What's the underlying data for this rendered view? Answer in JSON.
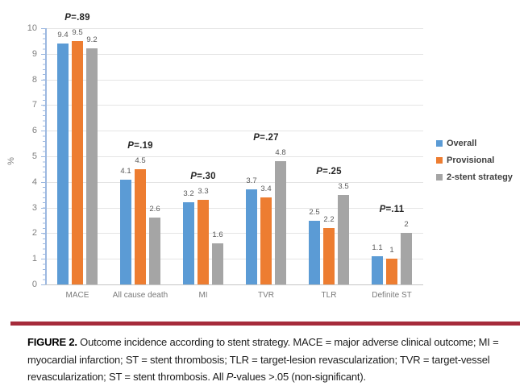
{
  "chart_data": {
    "type": "bar",
    "title": "",
    "xlabel": "",
    "ylabel": "%",
    "ylim": [
      0,
      10
    ],
    "ytick_step": 1,
    "grid": true,
    "legend_position": "right-middle",
    "categories": [
      "MACE",
      "All cause death",
      "MI",
      "TVR",
      "TLR",
      "Definite ST"
    ],
    "series": [
      {
        "name": "Overall",
        "color": "#5b9bd5",
        "values": [
          9.4,
          4.1,
          3.2,
          3.7,
          2.5,
          1.1
        ]
      },
      {
        "name": "Provisional",
        "color": "#ed7d31",
        "values": [
          9.5,
          4.5,
          3.3,
          3.4,
          2.2,
          1
        ]
      },
      {
        "name": "2-stent strategy",
        "color": "#a5a5a5",
        "values": [
          9.2,
          2.6,
          1.6,
          4.8,
          3.5,
          2
        ]
      }
    ],
    "p_values": [
      "P=.89",
      "P=.19",
      "P=.30",
      "P=.27",
      "P=.25",
      "P=.11"
    ]
  },
  "caption": {
    "label": "FIGURE 2.",
    "text_before_p": " Outcome incidence according to stent strategy. MACE = major adverse clinical outcome; MI = myocardial infarction; ST = stent thrombosis; TLR = target-lesion revascularization; TVR = target-vessel revascularization; ST = stent thrombosis. All ",
    "p_symbol": "P",
    "text_after_p": "-values >.05 (non-significant)."
  },
  "colors": {
    "rule": "#a62b3b",
    "axis": "#9cb8e0",
    "gridline": "#e4e4e4"
  }
}
